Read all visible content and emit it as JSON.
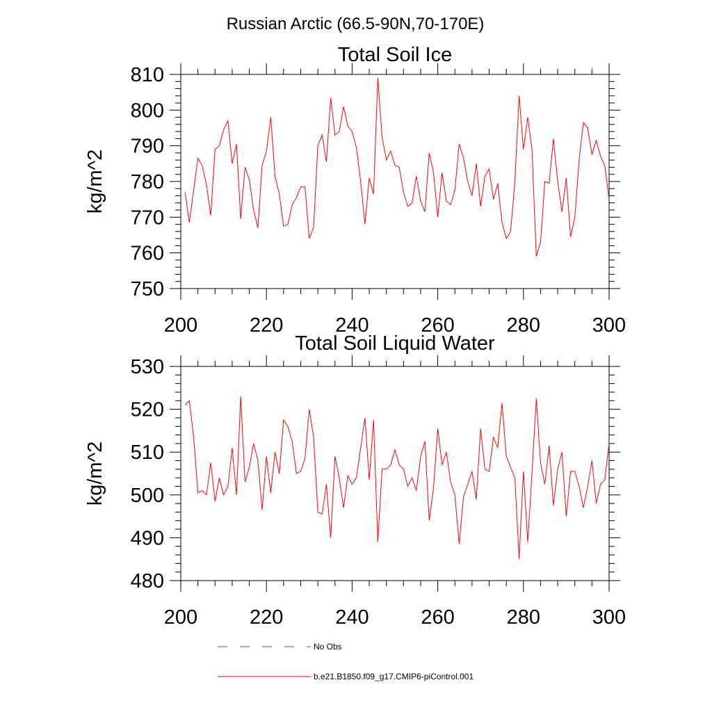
{
  "main_title": "Russian Arctic (66.5-90N,70-170E)",
  "colors": {
    "model_line": "#ff0000",
    "obs_line": "#4a4a8a",
    "axis": "#000000"
  },
  "legend": {
    "items": [
      {
        "label": "No Obs",
        "style": "dashed",
        "color": "#4a4a8a"
      },
      {
        "label": "b.e21.B1850.f09_g17.CMIP6-piControl.001",
        "style": "solid",
        "color": "#ff0000"
      }
    ]
  },
  "chart_data": [
    {
      "type": "line",
      "title": "Total Soil Ice",
      "xlabel": "",
      "ylabel": "kg/m^2",
      "xlim": [
        200,
        300
      ],
      "ylim": [
        750,
        810
      ],
      "xticks": [
        200,
        220,
        240,
        260,
        280,
        300
      ],
      "yticks": [
        750,
        760,
        770,
        780,
        790,
        800,
        810
      ],
      "grid": false,
      "series": [
        {
          "x": [
            201,
            202,
            203,
            204,
            205,
            206,
            207,
            208,
            209,
            210,
            211,
            212,
            213,
            214,
            215,
            216,
            217,
            218,
            219,
            220,
            221,
            222,
            223,
            224,
            225,
            226,
            227,
            228,
            229,
            230,
            231,
            232,
            233,
            234,
            235,
            236,
            237,
            238,
            239,
            240,
            241,
            242,
            243,
            244,
            245,
            246,
            247,
            248,
            249,
            250,
            251,
            252,
            253,
            254,
            255,
            256,
            257,
            258,
            259,
            260,
            261,
            262,
            263,
            264,
            265,
            266,
            267,
            268,
            269,
            270,
            271,
            272,
            273,
            274,
            275,
            276,
            277,
            278,
            279,
            280,
            281,
            282,
            283,
            284,
            285,
            286,
            287,
            288,
            289,
            290,
            291,
            292,
            293,
            294,
            295,
            296,
            297,
            298,
            299,
            300
          ],
          "values": [
            777,
            768.5,
            777.5,
            786.5,
            784.5,
            779,
            770.5,
            789,
            790,
            794.5,
            797,
            785,
            790.5,
            769.5,
            784,
            780.5,
            772,
            767,
            784.5,
            788.5,
            798,
            781.5,
            776.5,
            767.5,
            768,
            773.5,
            775.5,
            778.5,
            778.5,
            764,
            767,
            790,
            793,
            785.5,
            803.5,
            793,
            794,
            801,
            795.5,
            794,
            789.5,
            780,
            768,
            781,
            776.5,
            809,
            792.5,
            786,
            788.5,
            784.5,
            784,
            777,
            773,
            774,
            781.5,
            774.5,
            771.5,
            788,
            782.5,
            770,
            782.5,
            774.5,
            773.5,
            777.5,
            790.5,
            786.5,
            780,
            776,
            785,
            773,
            781.5,
            783.5,
            775,
            779.5,
            768.5,
            764,
            766,
            780,
            804,
            789,
            798,
            789,
            759,
            763,
            780,
            779.5,
            792,
            780,
            771.5,
            781,
            764.5,
            770,
            786,
            796.5,
            795,
            787.5,
            791.5,
            787,
            784.5,
            775
          ]
        }
      ]
    },
    {
      "type": "line",
      "title": "Total Soil Liquid Water",
      "xlabel": "",
      "ylabel": "kg/m^2",
      "xlim": [
        200,
        300
      ],
      "ylim": [
        480,
        530
      ],
      "xticks": [
        200,
        220,
        240,
        260,
        280,
        300
      ],
      "yticks": [
        480,
        490,
        500,
        510,
        520,
        530
      ],
      "grid": false,
      "series": [
        {
          "x": [
            201,
            202,
            203,
            204,
            205,
            206,
            207,
            208,
            209,
            210,
            211,
            212,
            213,
            214,
            215,
            216,
            217,
            218,
            219,
            220,
            221,
            222,
            223,
            224,
            225,
            226,
            227,
            228,
            229,
            230,
            231,
            232,
            233,
            234,
            235,
            236,
            237,
            238,
            239,
            240,
            241,
            242,
            243,
            244,
            245,
            246,
            247,
            248,
            249,
            250,
            251,
            252,
            253,
            254,
            255,
            256,
            257,
            258,
            259,
            260,
            261,
            262,
            263,
            264,
            265,
            266,
            267,
            268,
            269,
            270,
            271,
            272,
            273,
            274,
            275,
            276,
            277,
            278,
            279,
            280,
            281,
            282,
            283,
            284,
            285,
            286,
            287,
            288,
            289,
            290,
            291,
            292,
            293,
            294,
            295,
            296,
            297,
            298,
            299,
            300
          ],
          "values": [
            521,
            522,
            513.5,
            500.5,
            501,
            500,
            507.5,
            498.5,
            504,
            500,
            502,
            511,
            500,
            523,
            503,
            506.5,
            512,
            508,
            496.5,
            509,
            500.5,
            510,
            505,
            517.5,
            516,
            512.5,
            505,
            505.5,
            508.5,
            520,
            513.5,
            496,
            495.5,
            502.5,
            490,
            509,
            504,
            497,
            504.5,
            502.5,
            504,
            511,
            518,
            503.5,
            517.5,
            489,
            506,
            506,
            507,
            510.5,
            507,
            506,
            502,
            504,
            501,
            509,
            512.5,
            494,
            501.5,
            515.5,
            507,
            510,
            503,
            500,
            488.5,
            499.5,
            502.5,
            505.5,
            499,
            515.5,
            506,
            505.5,
            513.5,
            511,
            521.5,
            509,
            506.5,
            504,
            485,
            505.5,
            489,
            505,
            522.5,
            507.5,
            502.5,
            511.5,
            497.5,
            506,
            510,
            495,
            505.5,
            505.5,
            502,
            497,
            502,
            508,
            498,
            502.5,
            503.5,
            512
          ]
        }
      ]
    }
  ]
}
